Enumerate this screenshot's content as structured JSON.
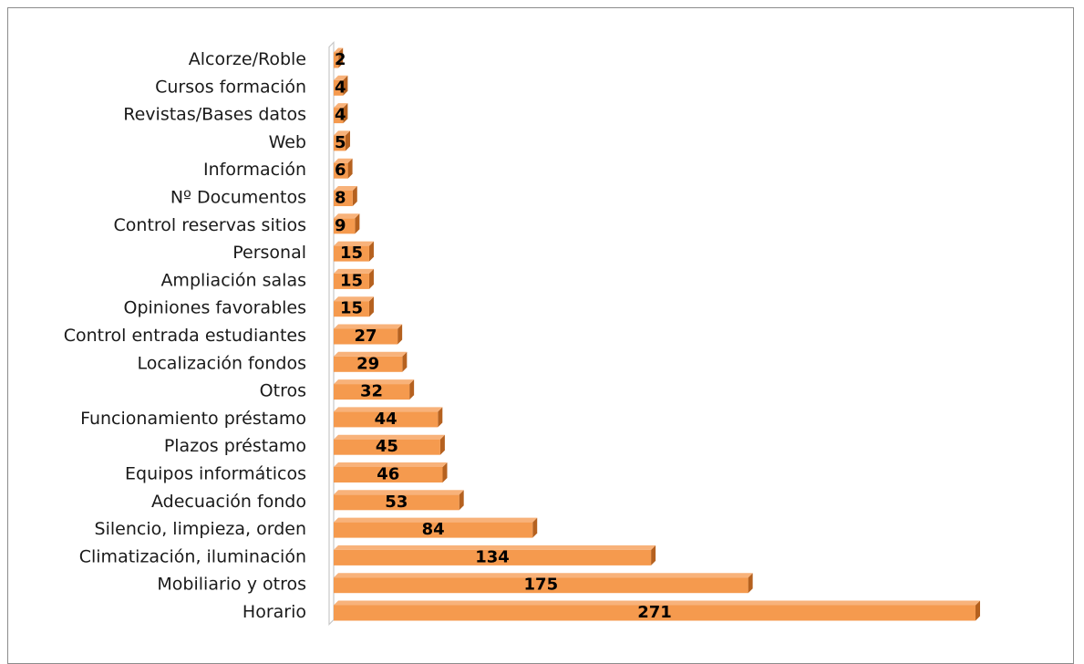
{
  "chart_data": {
    "type": "bar",
    "orientation": "horizontal",
    "style": "3d",
    "title": "",
    "xlabel": "",
    "ylabel": "",
    "xlim": [
      0,
      271
    ],
    "grid": false,
    "legend": "none",
    "colors": {
      "bar_front": "#f59a4e",
      "bar_top": "#f8b27a",
      "bar_side": "#b5611f",
      "axis_wall": "#c8c8c8"
    },
    "categories": [
      "Alcorze/Roble",
      "Cursos formación",
      "Revistas/Bases datos",
      "Web",
      "Información",
      "Nº Documentos",
      "Control reservas sitios",
      "Personal",
      "Ampliación salas",
      "Opiniones favorables",
      "Control entrada estudiantes",
      "Localización fondos",
      "Otros",
      "Funcionamiento préstamo",
      "Plazos préstamo",
      "Equipos informáticos",
      "Adecuación fondo",
      "Silencio, limpieza, orden",
      "Climatización, iluminación",
      "Mobiliario y otros",
      "Horario"
    ],
    "values": [
      2,
      4,
      4,
      5,
      6,
      8,
      9,
      15,
      15,
      15,
      27,
      29,
      32,
      44,
      45,
      46,
      53,
      84,
      134,
      175,
      271
    ],
    "value_labels": [
      "2",
      "4",
      "4",
      "5",
      "6",
      "8",
      "9",
      "15",
      "15",
      "15",
      "27",
      "29",
      "32",
      "44",
      "45",
      "46",
      "53",
      "84",
      "134",
      "175",
      "271"
    ]
  }
}
